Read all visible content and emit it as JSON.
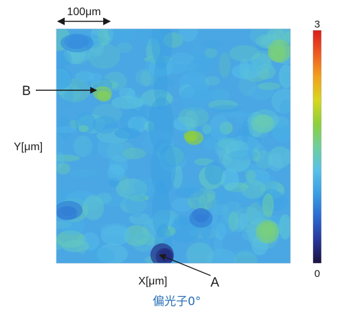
{
  "chart_data": {
    "type": "heatmap",
    "title": "",
    "xlabel": "X[μm]",
    "ylabel": "Y[μm]",
    "caption": "偏光子0°",
    "scale_bar": {
      "label": "100μm",
      "length_um": 100
    },
    "colorbar": {
      "min": 0,
      "max": 3,
      "tick_labels": [
        "3",
        "0"
      ],
      "colors": [
        "#1b1140",
        "#28379a",
        "#2c6ad0",
        "#3a9fe3",
        "#58c1e8",
        "#6fcf9c",
        "#8fcf3a",
        "#d7d61e",
        "#f2a21d",
        "#ee5a20",
        "#d81e1e"
      ]
    },
    "base_color": "#4aa7e4",
    "features": [
      {
        "name": "vertical-dark-band",
        "kind": "low",
        "x": 0.45,
        "y": 0.5,
        "rx": 0.08,
        "ry": 0.5,
        "value": 0.9
      },
      {
        "name": "point-a-dark-spot",
        "kind": "low",
        "x": 0.46,
        "y": 0.97,
        "rx": 0.05,
        "ry": 0.05,
        "value": 0.2
      },
      {
        "name": "left-bottom-dark",
        "kind": "low",
        "x": 0.05,
        "y": 0.78,
        "rx": 0.06,
        "ry": 0.04,
        "value": 0.7
      },
      {
        "name": "right-bottom-dark",
        "kind": "low",
        "x": 0.62,
        "y": 0.8,
        "rx": 0.05,
        "ry": 0.04,
        "value": 0.7
      },
      {
        "name": "top-dark-patch",
        "kind": "low",
        "x": 0.08,
        "y": 0.06,
        "rx": 0.07,
        "ry": 0.04,
        "value": 0.8
      },
      {
        "name": "point-b-green",
        "kind": "high",
        "x": 0.2,
        "y": 0.28,
        "rx": 0.04,
        "ry": 0.03,
        "value": 1.7
      },
      {
        "name": "center-green",
        "kind": "high",
        "x": 0.58,
        "y": 0.46,
        "rx": 0.04,
        "ry": 0.03,
        "value": 1.8
      },
      {
        "name": "right-bottom-green",
        "kind": "high",
        "x": 0.9,
        "y": 0.86,
        "rx": 0.05,
        "ry": 0.05,
        "value": 1.6
      },
      {
        "name": "top-right-green",
        "kind": "high",
        "x": 0.95,
        "y": 0.1,
        "rx": 0.05,
        "ry": 0.05,
        "value": 1.6
      },
      {
        "name": "mid-right-light",
        "kind": "high",
        "x": 0.88,
        "y": 0.4,
        "rx": 0.05,
        "ry": 0.04,
        "value": 1.4
      }
    ],
    "annotations": [
      {
        "label": "A",
        "target_x": 0.44,
        "target_y": 0.96
      },
      {
        "label": "B",
        "target_x": 0.2,
        "target_y": 0.28
      }
    ]
  }
}
